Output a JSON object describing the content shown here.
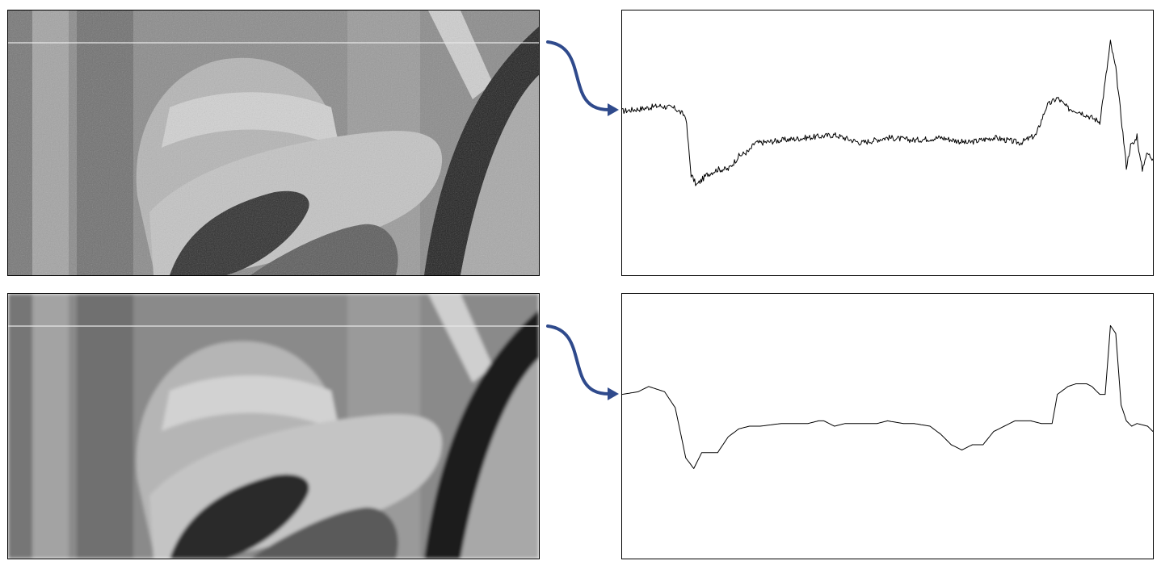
{
  "figure": {
    "panels": [
      {
        "id": "top",
        "variant": "noisy",
        "scanline_row_fraction": 0.12
      },
      {
        "id": "bottom",
        "variant": "smoothed",
        "scanline_row_fraction": 0.12
      }
    ],
    "colors": {
      "arrow": "#2f4a8c",
      "profile_line": "#000000",
      "frame": "#000000",
      "scanline": "#e8e8e8"
    }
  },
  "chart_data": [
    {
      "type": "line",
      "title": "",
      "xlabel": "",
      "ylabel": "",
      "grid": false,
      "xlim": [
        0,
        100
      ],
      "ylim": [
        0,
        100
      ],
      "series": [
        {
          "x": [
            0,
            4,
            7,
            10,
            12,
            13,
            14,
            16,
            18,
            20,
            22,
            24,
            25,
            26,
            30,
            35,
            40,
            45,
            50,
            55,
            60,
            65,
            70,
            75,
            78,
            80,
            82,
            84,
            86,
            88,
            90,
            92,
            93,
            94,
            95,
            95.8,
            96.5,
            97,
            97.5,
            98,
            98.5,
            99,
            100
          ],
          "y": [
            62,
            63,
            64,
            63,
            60,
            38,
            34,
            38,
            40,
            40,
            45,
            47,
            50,
            50,
            51,
            52,
            53,
            50,
            52,
            51,
            52,
            50,
            52,
            50,
            53,
            64,
            67,
            63,
            62,
            60,
            58,
            88,
            78,
            60,
            41,
            49,
            50,
            53,
            45,
            40,
            44,
            46,
            44
          ]
        }
      ]
    },
    {
      "type": "line",
      "title": "",
      "xlabel": "",
      "ylabel": "",
      "grid": false,
      "xlim": [
        0,
        100
      ],
      "ylim": [
        0,
        100
      ],
      "series": [
        {
          "x": [
            0,
            3,
            5,
            6.5,
            8,
            10,
            12,
            13.5,
            15,
            18,
            20,
            22,
            24,
            26,
            30,
            35,
            37,
            38,
            40,
            42,
            45,
            48,
            50,
            53,
            55,
            58,
            60,
            62,
            63,
            64,
            66,
            68,
            70,
            72,
            74,
            75.5,
            77,
            79,
            81,
            82,
            84,
            85.5,
            86.5,
            87.5,
            88.5,
            89,
            90,
            91,
            92,
            93,
            94,
            95,
            96,
            97,
            99,
            100
          ],
          "y": [
            62,
            63,
            65,
            64,
            63,
            57,
            38,
            34,
            40,
            40,
            46,
            49,
            50,
            50,
            51,
            51,
            52,
            52,
            50,
            51,
            51,
            51,
            52,
            51,
            51,
            50,
            47,
            43,
            42,
            41,
            43,
            43,
            48,
            50,
            52,
            52,
            52,
            51,
            51,
            62,
            65,
            66,
            66,
            66,
            65,
            64,
            62,
            62,
            88,
            85,
            58,
            52,
            50,
            51,
            50,
            48
          ]
        }
      ]
    }
  ]
}
